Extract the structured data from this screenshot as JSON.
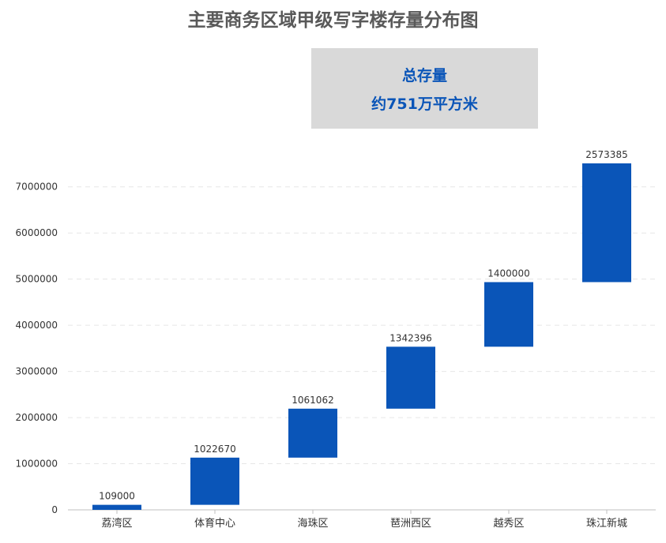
{
  "chart_data": {
    "type": "bar",
    "subtype": "waterfall",
    "title": "主要商务区域甲级写字楼存量分布图",
    "categories": [
      "荔湾区",
      "体育中心",
      "海珠区",
      "琶洲西区",
      "越秀区",
      "珠江新城"
    ],
    "values": [
      109000,
      1022670,
      1061062,
      1342396,
      1400000,
      2573385
    ],
    "data_labels": [
      "109000",
      "1022670",
      "1061062",
      "1342396",
      "1400000",
      "2573385"
    ],
    "ylim": [
      0,
      7500000
    ],
    "yticks": [
      0,
      1000000,
      2000000,
      3000000,
      4000000,
      5000000,
      6000000,
      7000000
    ],
    "ytick_labels": [
      "0",
      "1000000",
      "2000000",
      "3000000",
      "4000000",
      "5000000",
      "6000000",
      "7000000"
    ],
    "xlabel": "",
    "ylabel": "",
    "grid": true,
    "legend": "none",
    "bar_color": "#0a55b8",
    "grid_color": "#e6e6e6"
  },
  "summary": {
    "line1": "总存量",
    "line2": "约751万平方米"
  },
  "colors": {
    "accent": "#0a55b8",
    "title": "#595959",
    "summary_bg": "#d9d9d9"
  }
}
